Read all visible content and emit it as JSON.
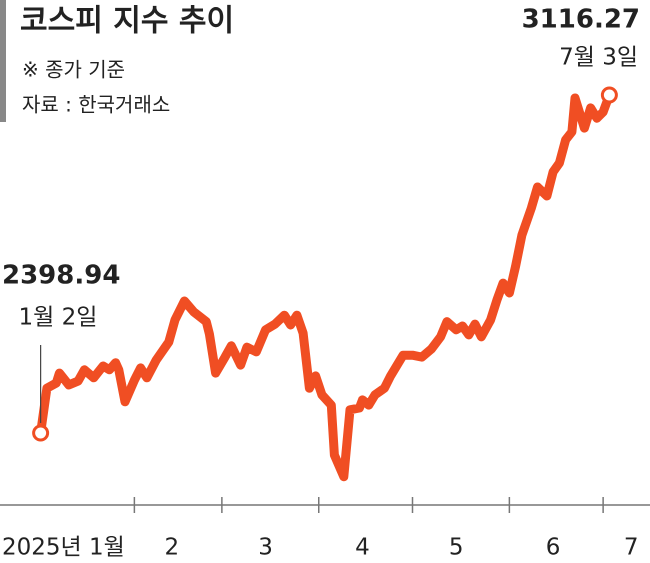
{
  "chart_data": {
    "type": "line",
    "title": "코스피 지수 추이",
    "subtitle": "※ 종가 기준",
    "source": "자료 : 한국거래소",
    "color": "#f04e23",
    "x": [
      "2025-01-02",
      "2025-01-04",
      "2025-01-07",
      "2025-01-08",
      "2025-01-11",
      "2025-01-14",
      "2025-01-16",
      "2025-01-19",
      "2025-01-22",
      "2025-01-24",
      "2025-01-26",
      "2025-01-27",
      "2025-01-29",
      "2025-02-01",
      "2025-02-03",
      "2025-02-05",
      "2025-02-08",
      "2025-02-12",
      "2025-02-14",
      "2025-02-17",
      "2025-02-20",
      "2025-02-24",
      "2025-02-25",
      "2025-02-27",
      "2025-03-02",
      "2025-03-04",
      "2025-03-07",
      "2025-03-09",
      "2025-03-12",
      "2025-03-15",
      "2025-03-18",
      "2025-03-21",
      "2025-03-23",
      "2025-03-25",
      "2025-03-27",
      "2025-03-29",
      "2025-03-31",
      "2025-04-02",
      "2025-04-05",
      "2025-04-06",
      "2025-04-09",
      "2025-04-11",
      "2025-04-14",
      "2025-04-15",
      "2025-04-17",
      "2025-04-19",
      "2025-04-22",
      "2025-04-24",
      "2025-04-28",
      "2025-05-01",
      "2025-05-04",
      "2025-05-07",
      "2025-05-10",
      "2025-05-12",
      "2025-05-15",
      "2025-05-17",
      "2025-05-19",
      "2025-05-21",
      "2025-05-23",
      "2025-05-26",
      "2025-05-28",
      "2025-05-30",
      "2025-06-01",
      "2025-06-03",
      "2025-06-05",
      "2025-06-08",
      "2025-06-10",
      "2025-06-13",
      "2025-06-15",
      "2025-06-17",
      "2025-06-19",
      "2025-06-21",
      "2025-06-22",
      "2025-06-25",
      "2025-06-27",
      "2025-06-29",
      "2025-07-01",
      "2025-07-03"
    ],
    "values": [
      2398.94,
      2494,
      2505,
      2526,
      2501,
      2509,
      2533,
      2516,
      2541,
      2533,
      2548,
      2533,
      2465,
      2511,
      2537,
      2516,
      2554,
      2592,
      2639,
      2679,
      2656,
      2635,
      2609,
      2526,
      2560,
      2584,
      2543,
      2581,
      2571,
      2618,
      2630,
      2649,
      2628,
      2649,
      2611,
      2494,
      2520,
      2480,
      2458,
      2352,
      2306,
      2448,
      2452,
      2469,
      2458,
      2480,
      2494,
      2520,
      2564,
      2564,
      2560,
      2577,
      2603,
      2635,
      2618,
      2626,
      2607,
      2630,
      2603,
      2639,
      2681,
      2717,
      2696,
      2753,
      2819,
      2876,
      2921,
      2902,
      2953,
      2972,
      3021,
      3038,
      3110,
      3046,
      3089,
      3067,
      3080,
      3116.27
    ],
    "annotations": [
      "1월 2일",
      "7월 3일"
    ],
    "xlim": [
      "2024-12-20",
      "2025-07-16"
    ],
    "ylim": [
      2246,
      3318
    ],
    "xticks": [
      {
        "value": "2025-01-08",
        "label": "2025년 1월"
      },
      {
        "value": "2025-02-13",
        "label": "2"
      },
      {
        "value": "2025-03-15",
        "label": "3"
      },
      {
        "value": "2025-04-15",
        "label": "4"
      },
      {
        "value": "2025-05-15",
        "label": "5"
      },
      {
        "value": "2025-06-15",
        "label": "6"
      },
      {
        "value": "2025-07-10",
        "label": "7"
      }
    ]
  }
}
